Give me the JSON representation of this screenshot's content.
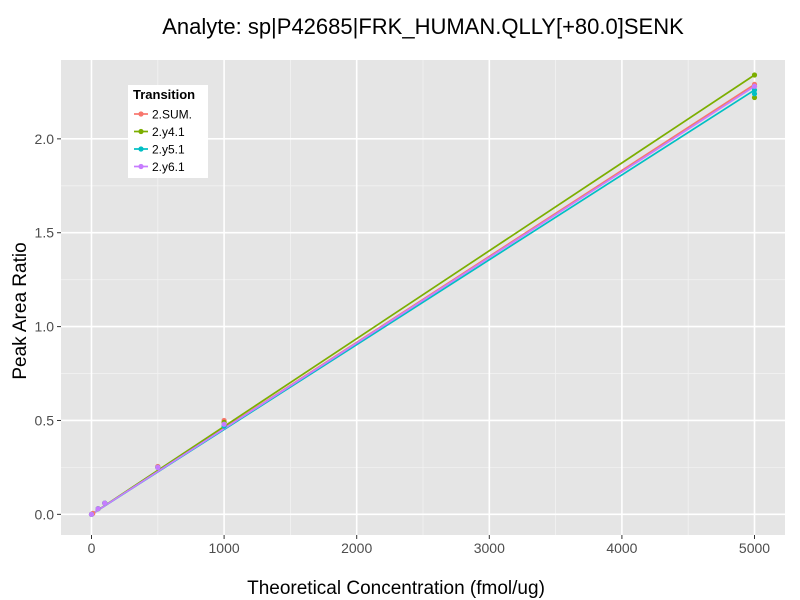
{
  "chart_data": {
    "type": "line",
    "title": "Analyte: sp|P42685|FRK_HUMAN.QLLY[+80.0]SENK",
    "xlabel": "Theoretical Concentration (fmol/ug)",
    "ylabel": "Peak Area Ratio",
    "xlim": [
      -230,
      5230
    ],
    "ylim": [
      -0.11,
      2.42
    ],
    "x_ticks": [
      0,
      1000,
      2000,
      3000,
      4000,
      5000
    ],
    "x_tick_labels": [
      "0",
      "1000",
      "2000",
      "3000",
      "4000",
      "5000"
    ],
    "y_ticks": [
      0.0,
      0.5,
      1.0,
      1.5,
      2.0
    ],
    "y_tick_labels": [
      "0.0",
      "0.5",
      "1.0",
      "1.5",
      "2.0"
    ],
    "grid": true,
    "legend": {
      "title": "Transition",
      "placement": "top-left"
    },
    "series": [
      {
        "name": "2.SUM.",
        "color": "#F8766D",
        "fit": {
          "x": [
            0,
            5000
          ],
          "y": [
            0.0,
            2.29
          ]
        },
        "points": [
          {
            "x": 0,
            "y": 0.0
          },
          {
            "x": 10,
            "y": 0.005
          },
          {
            "x": 50,
            "y": 0.03
          },
          {
            "x": 100,
            "y": 0.06
          },
          {
            "x": 500,
            "y": 0.255
          },
          {
            "x": 1000,
            "y": 0.49
          },
          {
            "x": 1000,
            "y": 0.5
          },
          {
            "x": 5000,
            "y": 2.29
          },
          {
            "x": 5000,
            "y": 2.28
          }
        ]
      },
      {
        "name": "2.y4.1",
        "color": "#7CAE00",
        "fit": {
          "x": [
            0,
            5000
          ],
          "y": [
            0.0,
            2.34
          ]
        },
        "points": [
          {
            "x": 0,
            "y": 0.0
          },
          {
            "x": 50,
            "y": 0.03
          },
          {
            "x": 100,
            "y": 0.06
          },
          {
            "x": 500,
            "y": 0.25
          },
          {
            "x": 1000,
            "y": 0.49
          },
          {
            "x": 5000,
            "y": 2.34
          },
          {
            "x": 5000,
            "y": 2.22
          }
        ]
      },
      {
        "name": "2.y5.1",
        "color": "#00BFC4",
        "fit": {
          "x": [
            0,
            5000
          ],
          "y": [
            0.0,
            2.26
          ]
        },
        "points": [
          {
            "x": 0,
            "y": 0.0
          },
          {
            "x": 50,
            "y": 0.03
          },
          {
            "x": 100,
            "y": 0.06
          },
          {
            "x": 500,
            "y": 0.25
          },
          {
            "x": 1000,
            "y": 0.47
          },
          {
            "x": 5000,
            "y": 2.26
          },
          {
            "x": 5000,
            "y": 2.24
          }
        ]
      },
      {
        "name": "2.y6.1",
        "color": "#C77CFF",
        "fit": {
          "x": [
            0,
            5000
          ],
          "y": [
            0.0,
            2.28
          ]
        },
        "points": [
          {
            "x": 0,
            "y": 0.0
          },
          {
            "x": 50,
            "y": 0.03
          },
          {
            "x": 100,
            "y": 0.06
          },
          {
            "x": 500,
            "y": 0.25
          },
          {
            "x": 1000,
            "y": 0.48
          },
          {
            "x": 5000,
            "y": 2.28
          }
        ]
      }
    ]
  }
}
